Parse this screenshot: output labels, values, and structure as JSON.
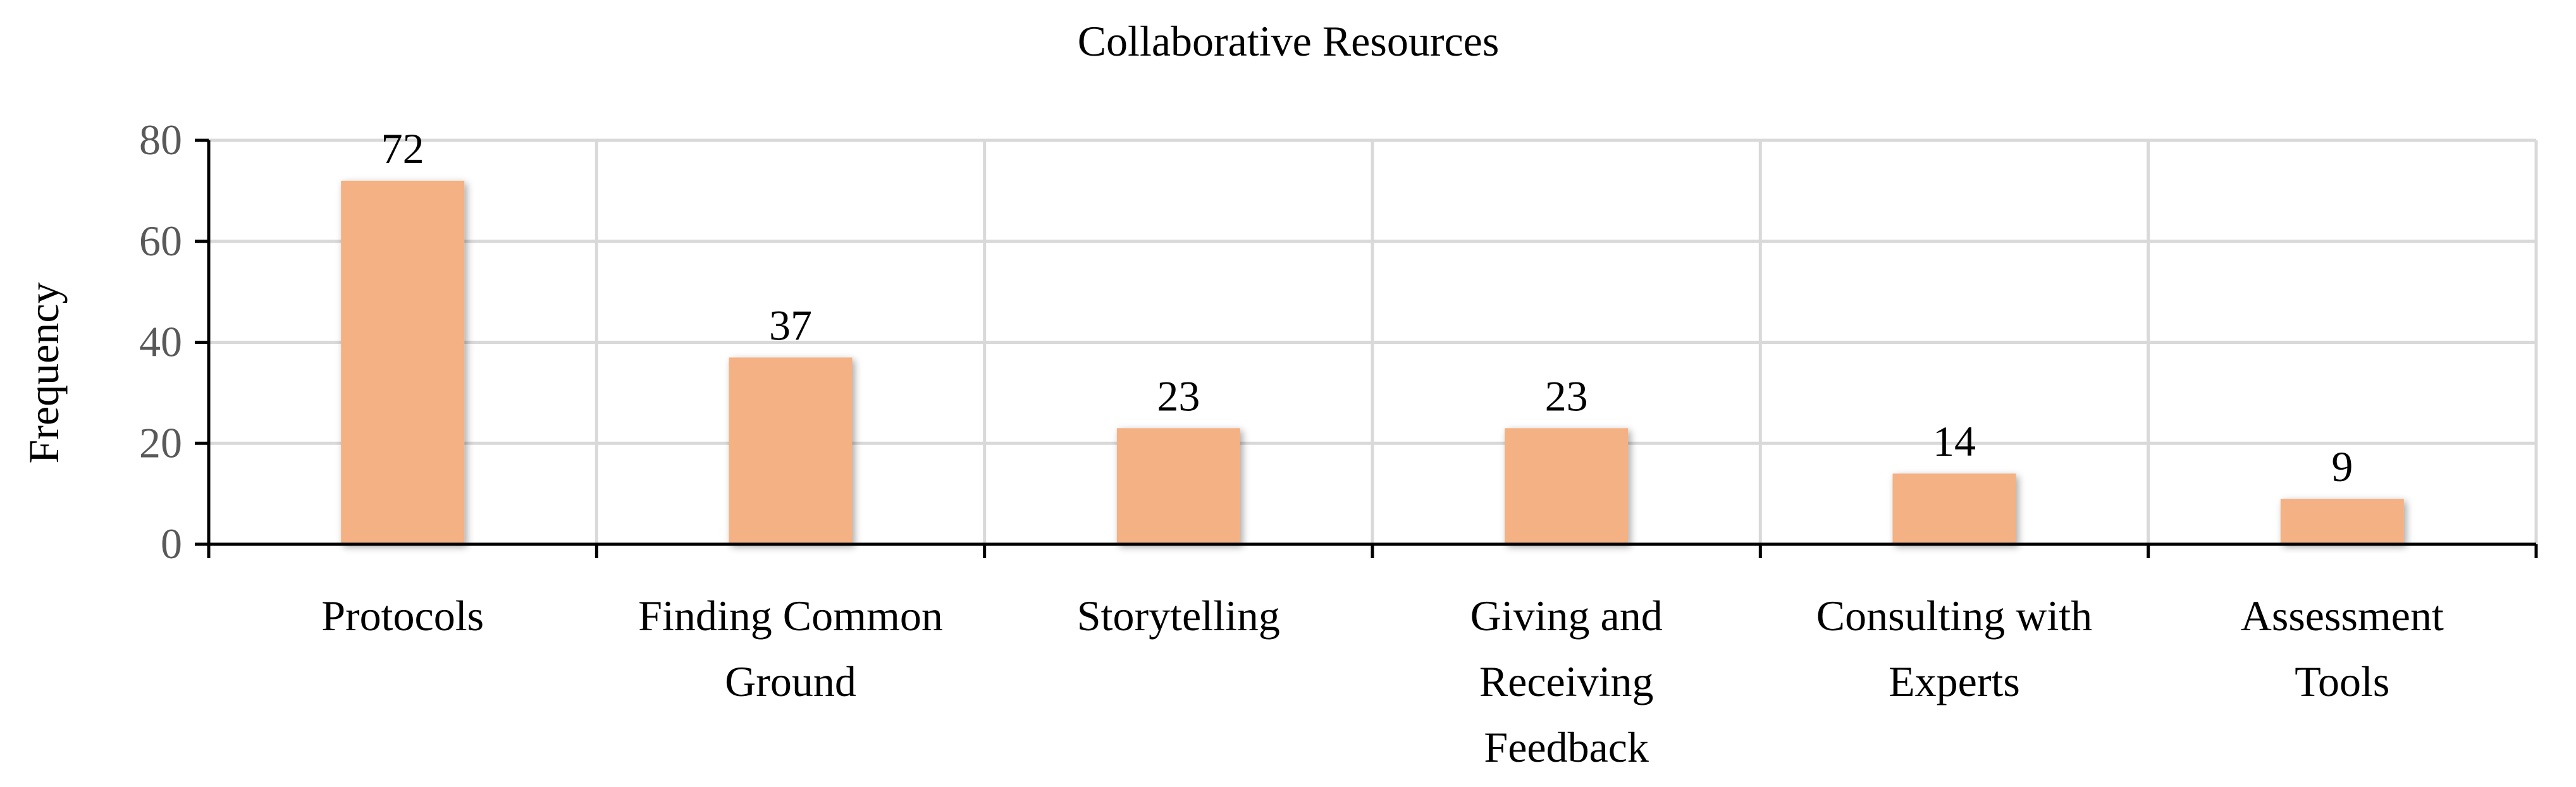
{
  "chart_data": {
    "type": "bar",
    "title": "Collaborative Resources",
    "xlabel": "",
    "ylabel": "Frequency",
    "ylim": [
      0,
      80
    ],
    "yticks": [
      0,
      20,
      40,
      60,
      80
    ],
    "grid": true,
    "categories": [
      [
        "Protocols"
      ],
      [
        "Finding Common",
        "Ground"
      ],
      [
        "Storytelling"
      ],
      [
        "Giving and",
        "Receiving",
        "Feedback"
      ],
      [
        "Consulting with",
        "Experts"
      ],
      [
        "Assessment",
        "Tools"
      ]
    ],
    "values": [
      72,
      37,
      23,
      23,
      14,
      9
    ],
    "bar_color": "#f4b183"
  }
}
